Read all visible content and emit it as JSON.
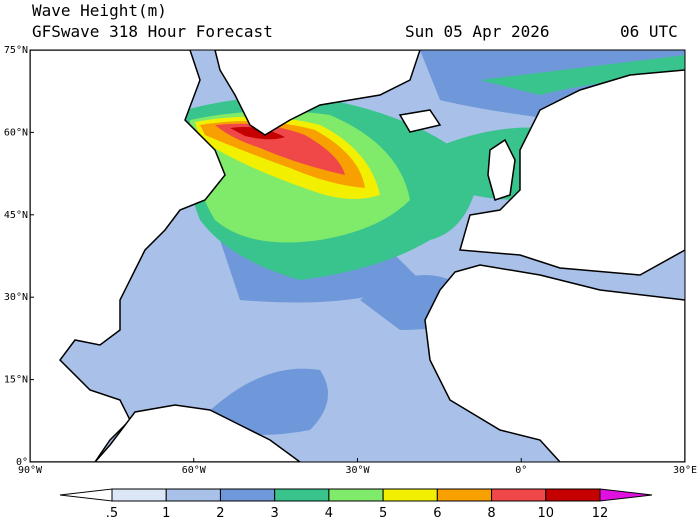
{
  "header": {
    "title": "Wave Height(m)",
    "subtitle": "GFSwave 318 Hour Forecast",
    "date": "Sun 05 Apr 2026",
    "time": "06 UTC"
  },
  "map": {
    "lat_labels": [
      "75°N",
      "60°N",
      "45°N",
      "30°N",
      "15°N",
      "0°"
    ],
    "lon_labels": [
      "90°W",
      "60°W",
      "30°W",
      "0°",
      "30°E"
    ]
  },
  "colorbar": {
    "labels": [
      ".5",
      "1",
      "2",
      "3",
      "4",
      "5",
      "6",
      "8",
      "10",
      "12"
    ],
    "colors": [
      "#ffffff",
      "#dbe7f6",
      "#a9c0e8",
      "#6f98da",
      "#38c48c",
      "#80ea6a",
      "#f2f000",
      "#f8a000",
      "#f04848",
      "#c40000",
      "#e010e0"
    ]
  }
}
